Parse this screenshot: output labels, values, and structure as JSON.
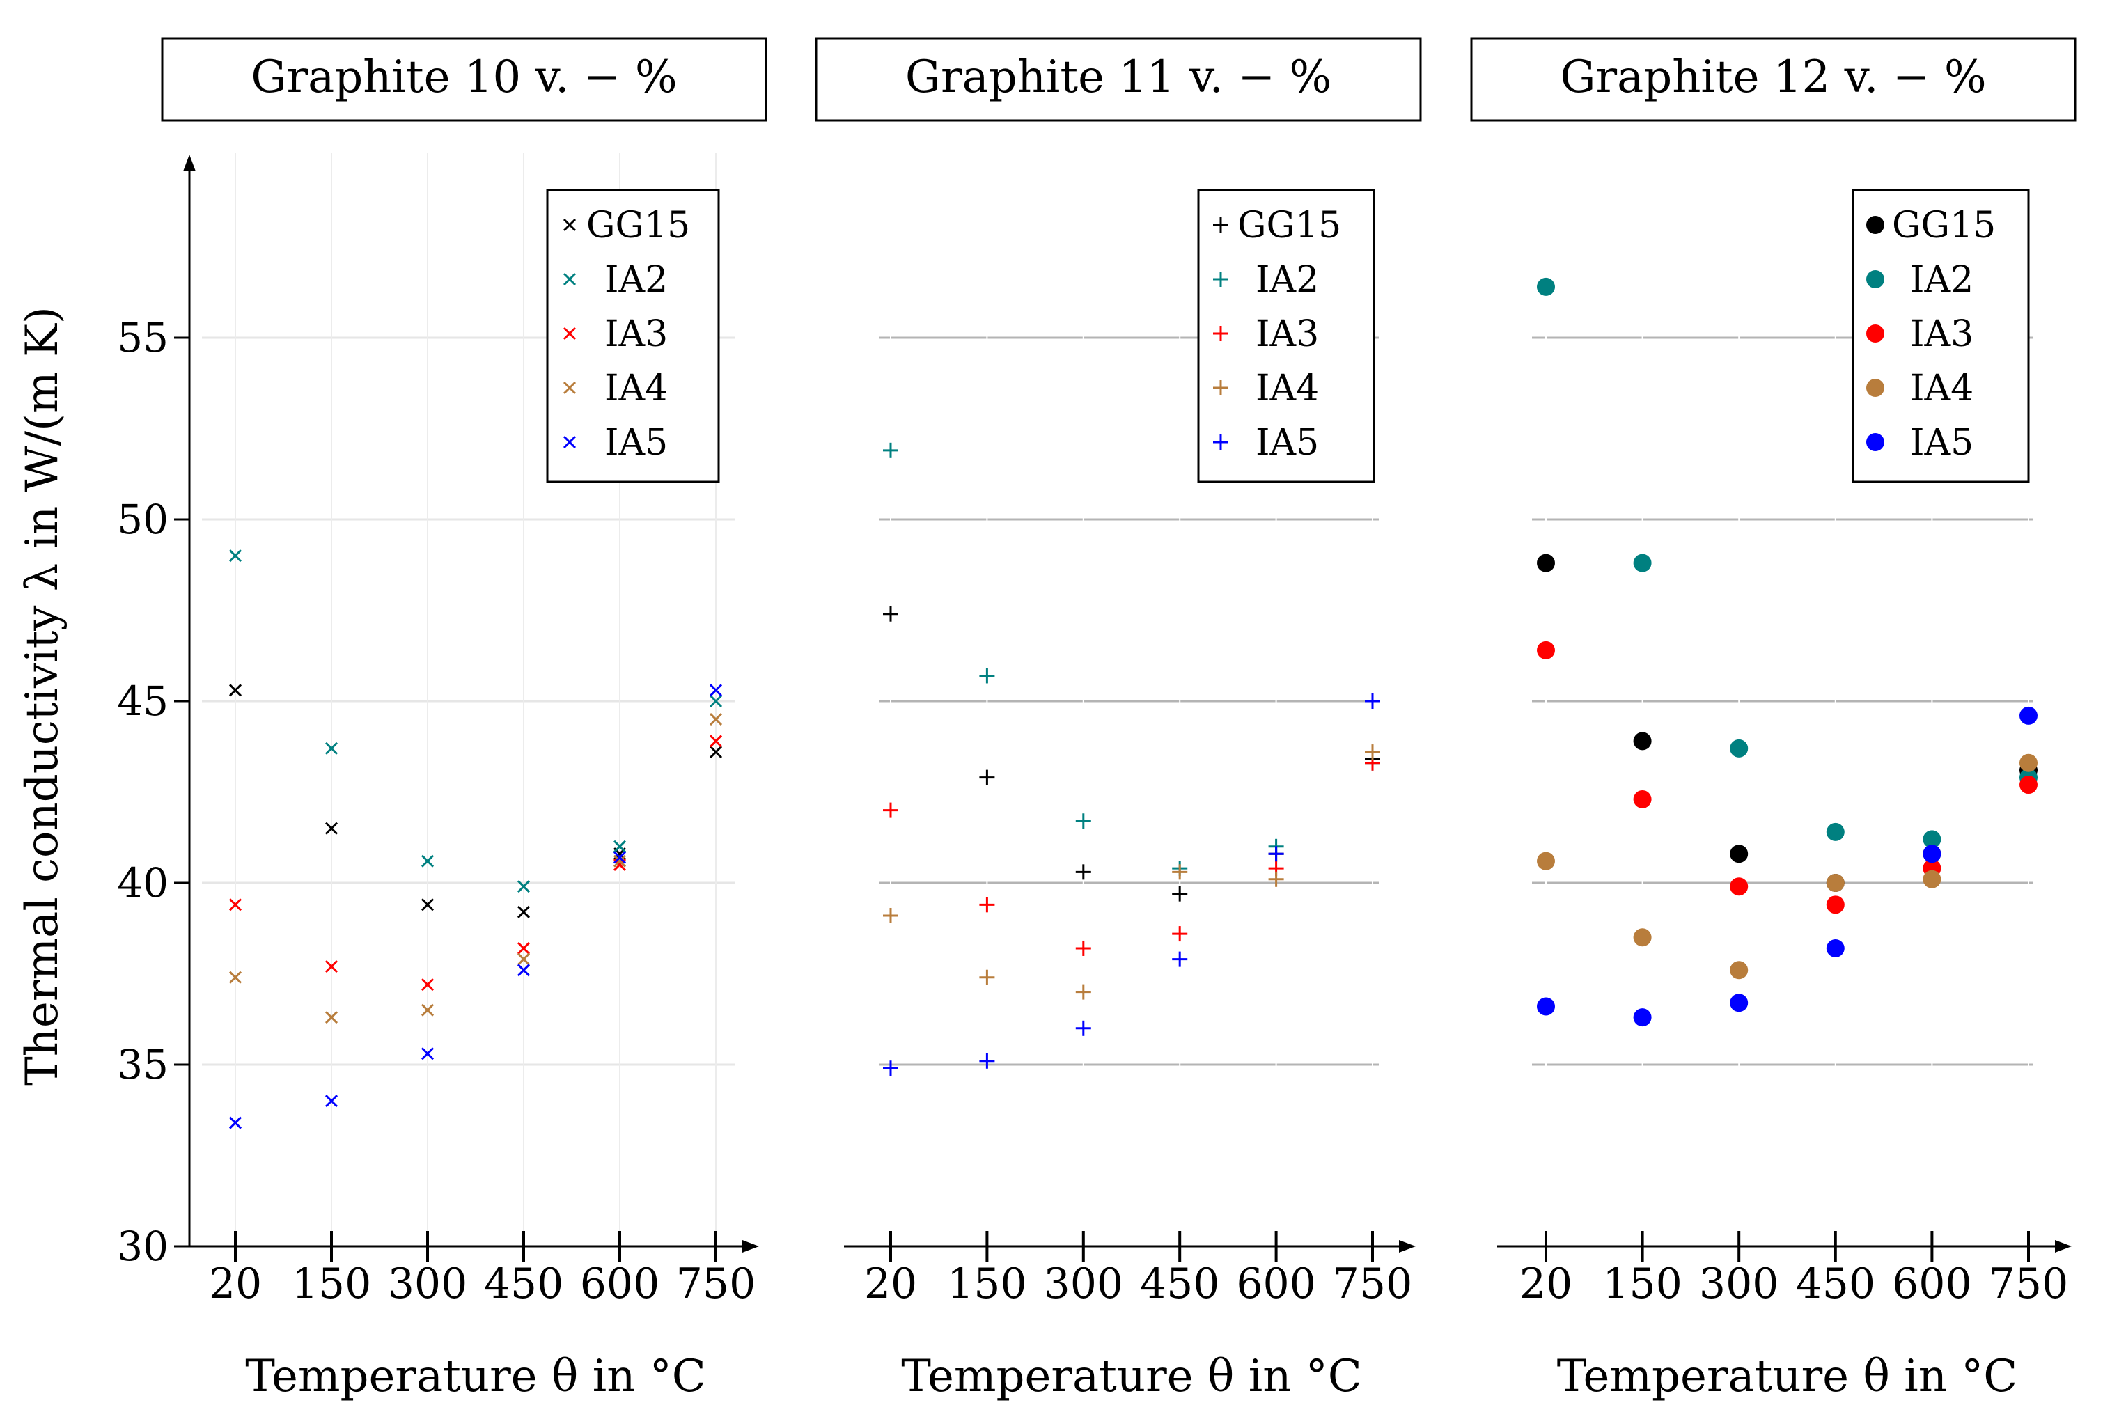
{
  "figure": {
    "ylabel": "Thermal conductivity λ in W/(m K)",
    "y_ticks": [
      "30",
      "35",
      "40",
      "45",
      "50",
      "55"
    ]
  },
  "chart_data": [
    {
      "type": "scatter",
      "title": "Graphite 10 v. − %",
      "xlabel": "Temperature θ in °C",
      "ylabel": "Thermal conductivity λ in W/(m K)",
      "marker": "x",
      "categories": [
        "20",
        "150",
        "300",
        "450",
        "600",
        "750"
      ],
      "x": [
        20,
        150,
        300,
        450,
        600,
        750
      ],
      "ylim": [
        30,
        60
      ],
      "legend": "top-right",
      "grid": "light",
      "series": [
        {
          "name": "GG15",
          "color": "#000000",
          "values": [
            45.3,
            41.5,
            39.4,
            39.2,
            40.8,
            43.6
          ]
        },
        {
          "name": "IA2",
          "color": "#008080",
          "values": [
            49.0,
            43.7,
            40.6,
            39.9,
            41.0,
            45.0
          ]
        },
        {
          "name": "IA3",
          "color": "#ff0000",
          "values": [
            39.4,
            37.7,
            37.2,
            38.2,
            40.5,
            43.9
          ]
        },
        {
          "name": "IA4",
          "color": "#b87d3c",
          "values": [
            37.4,
            36.3,
            36.5,
            37.9,
            40.6,
            44.5
          ]
        },
        {
          "name": "IA5",
          "color": "#0000ff",
          "values": [
            33.4,
            34.0,
            35.3,
            37.6,
            40.7,
            45.3
          ]
        }
      ]
    },
    {
      "type": "scatter",
      "title": "Graphite 11 v. − %",
      "xlabel": "Temperature θ in °C",
      "ylabel": "Thermal conductivity λ in W/(m K)",
      "marker": "+",
      "categories": [
        "20",
        "150",
        "300",
        "450",
        "600",
        "750"
      ],
      "x": [
        20,
        150,
        300,
        450,
        600,
        750
      ],
      "ylim": [
        30,
        60
      ],
      "legend": "top-right",
      "grid": "dark",
      "series": [
        {
          "name": "GG15",
          "color": "#000000",
          "values": [
            47.4,
            42.9,
            40.3,
            39.7,
            40.8,
            43.4
          ]
        },
        {
          "name": "IA2",
          "color": "#008080",
          "values": [
            51.9,
            45.7,
            41.7,
            40.4,
            41.0,
            43.3
          ]
        },
        {
          "name": "IA3",
          "color": "#ff0000",
          "values": [
            42.0,
            39.4,
            38.2,
            38.6,
            40.4,
            43.3
          ]
        },
        {
          "name": "IA4",
          "color": "#b87d3c",
          "values": [
            39.1,
            37.4,
            37.0,
            40.3,
            40.1,
            43.6
          ]
        },
        {
          "name": "IA5",
          "color": "#0000ff",
          "values": [
            34.9,
            35.1,
            36.0,
            37.9,
            40.8,
            45.0
          ]
        }
      ]
    },
    {
      "type": "scatter",
      "title": "Graphite 12 v. − %",
      "xlabel": "Temperature θ in °C",
      "ylabel": "Thermal conductivity λ in W/(m K)",
      "marker": "o",
      "categories": [
        "20",
        "150",
        "300",
        "450",
        "600",
        "750"
      ],
      "x": [
        20,
        150,
        300,
        450,
        600,
        750
      ],
      "ylim": [
        30,
        60
      ],
      "legend": "top-right",
      "grid": "dark",
      "series": [
        {
          "name": "GG15",
          "color": "#000000",
          "values": [
            48.8,
            43.9,
            40.8,
            40.0,
            40.8,
            43.1
          ]
        },
        {
          "name": "IA2",
          "color": "#008080",
          "values": [
            56.4,
            48.8,
            43.7,
            41.4,
            41.2,
            42.9
          ]
        },
        {
          "name": "IA3",
          "color": "#ff0000",
          "values": [
            46.4,
            42.3,
            39.9,
            39.4,
            40.4,
            42.7
          ]
        },
        {
          "name": "IA4",
          "color": "#b87d3c",
          "values": [
            40.6,
            38.5,
            37.6,
            40.0,
            40.1,
            43.3
          ]
        },
        {
          "name": "IA5",
          "color": "#0000ff",
          "values": [
            36.6,
            36.3,
            36.7,
            38.2,
            40.8,
            44.6
          ]
        }
      ]
    }
  ]
}
